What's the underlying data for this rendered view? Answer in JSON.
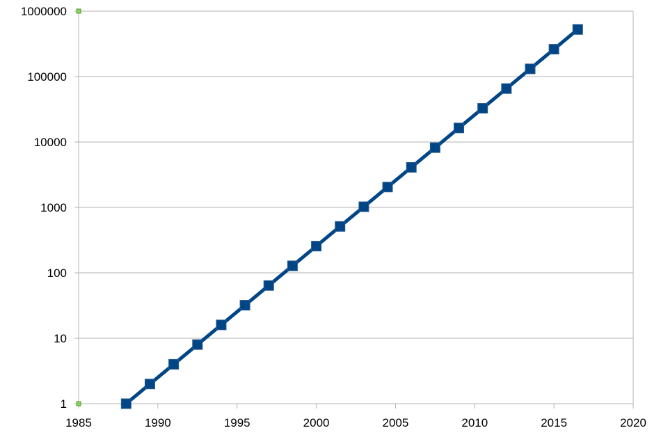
{
  "chart_data": {
    "type": "line",
    "title": "",
    "xlabel": "",
    "ylabel": "",
    "xlim": [
      1985,
      2020
    ],
    "ylim": [
      1,
      1000000
    ],
    "y_scale": "log",
    "grid": true,
    "legend": "none",
    "x_ticks": [
      "1985",
      "1990",
      "1995",
      "2000",
      "2005",
      "2010",
      "2015",
      "2020"
    ],
    "y_ticks": [
      "1",
      "10",
      "100",
      "1000",
      "10000",
      "100000",
      "1000000"
    ],
    "series": [
      {
        "color": "#004586",
        "marker": "square",
        "x": [
          1988,
          1989.5,
          1991,
          1992.5,
          1994,
          1995.5,
          1997,
          1998.5,
          2000,
          2001.5,
          2003,
          2004.5,
          2006,
          2007.5,
          2009,
          2010.5,
          2012,
          2013.5,
          2015,
          2016.5
        ],
        "y": [
          1,
          2,
          4,
          8,
          16,
          32,
          64,
          128,
          256,
          512,
          1024,
          2048,
          4096,
          8192,
          16384,
          32768,
          65536,
          131072,
          262144,
          524288
        ]
      }
    ]
  }
}
